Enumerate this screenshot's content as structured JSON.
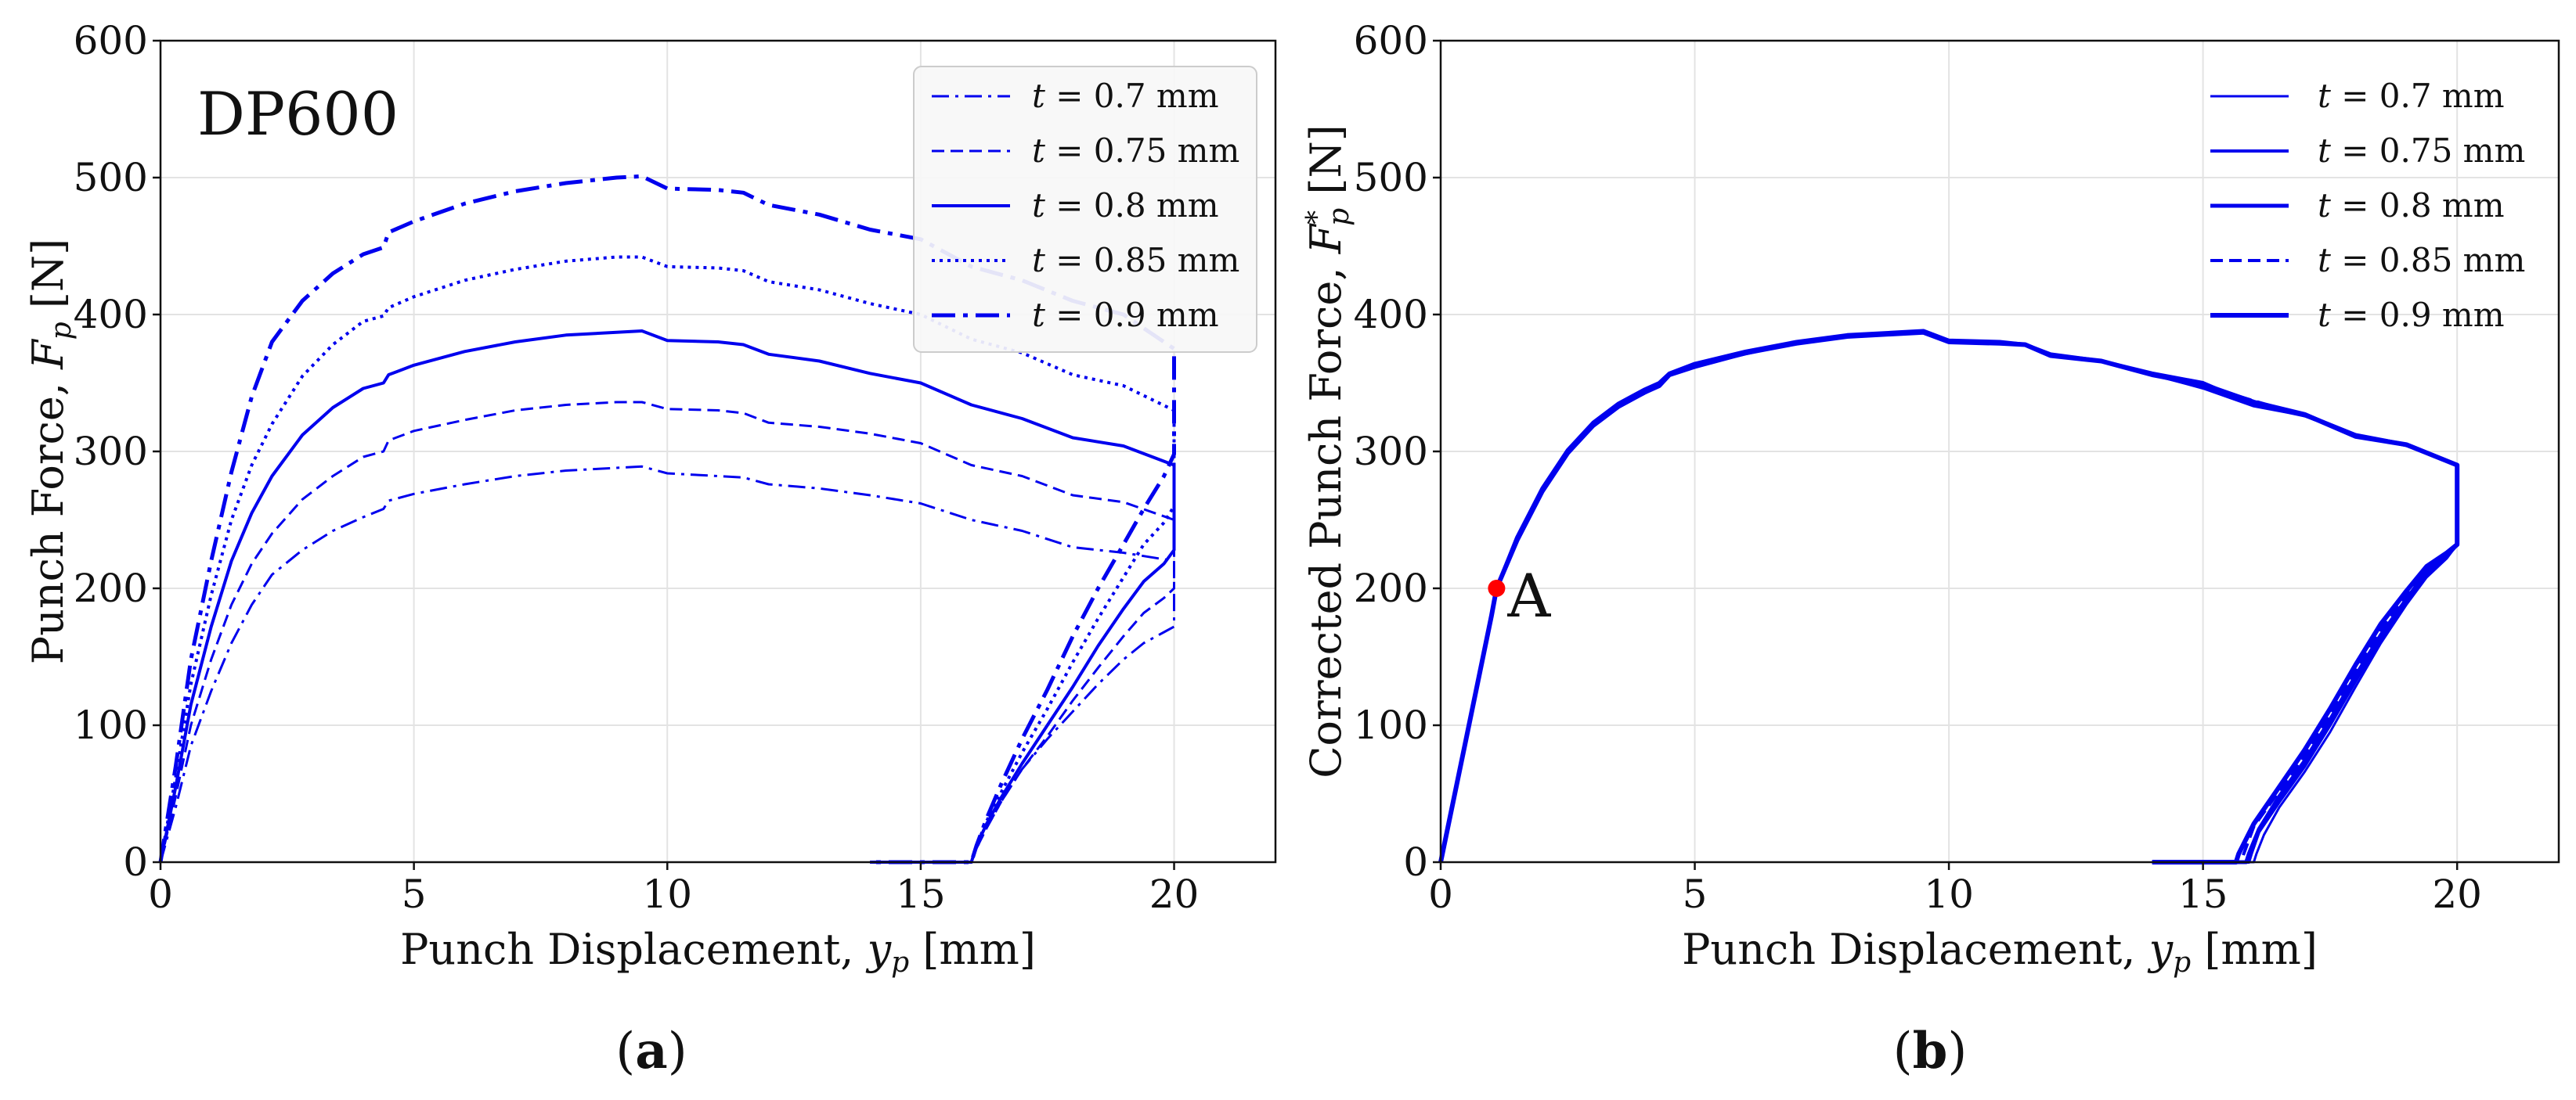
{
  "figure": {
    "panels": [
      {
        "tag_open": "(",
        "tag_letter": "a",
        "tag_close": ")"
      },
      {
        "tag_open": "(",
        "tag_letter": "b",
        "tag_close": ")"
      }
    ]
  },
  "chart_data": [
    {
      "type": "line",
      "title": "",
      "inset_label": "DP600",
      "xlabel": "Punch Displacement, y_p [mm]",
      "xlabel_parts": {
        "main": "Punch Displacement, ",
        "var": "y",
        "sub": "p",
        "unit": " [mm]"
      },
      "ylabel": "Punch Force, F_p [N]",
      "ylabel_parts": {
        "main": "Punch Force, ",
        "var": "F",
        "sub": "p",
        "unit": " [N]"
      },
      "xlim": [
        0,
        22
      ],
      "ylim": [
        0,
        600
      ],
      "xticks": [
        0,
        5,
        10,
        15,
        20
      ],
      "yticks": [
        0,
        100,
        200,
        300,
        400,
        500,
        600
      ],
      "xtick_labels": [
        "0",
        "5",
        "10",
        "15",
        "20"
      ],
      "ytick_labels": [
        "0",
        "100",
        "200",
        "300",
        "400",
        "500",
        "600"
      ],
      "grid": true,
      "legend_position": "top-right",
      "legend_framed": true,
      "color": "#0000ee",
      "series": [
        {
          "name": "t = 0.7 mm",
          "legend": {
            "var": "t",
            "rest": " = 0.7 mm"
          },
          "style": "dashdot",
          "width": 3,
          "x": [
            0,
            0.3,
            0.6,
            1.0,
            1.4,
            1.8,
            2.2,
            2.8,
            3.4,
            4.0,
            4.4,
            4.5,
            5.0,
            6.0,
            7.0,
            8.0,
            9.0,
            9.5,
            10.0,
            11.0,
            11.5,
            12.0,
            13.0,
            14.0,
            15.0,
            16.0,
            17.0,
            18.0,
            19.0,
            20.0,
            20.0,
            19.8,
            19.4,
            19.0,
            18.5,
            18.0,
            17.5,
            17.0,
            16.6,
            16.3,
            16.1,
            16.0,
            14.0
          ],
          "y": [
            0,
            40,
            85,
            125,
            160,
            188,
            210,
            228,
            242,
            252,
            258,
            264,
            269,
            276,
            282,
            286,
            288,
            289,
            284,
            282,
            281,
            276,
            273,
            268,
            262,
            250,
            242,
            230,
            226,
            220,
            172,
            168,
            160,
            148,
            130,
            110,
            90,
            68,
            45,
            25,
            10,
            0,
            0
          ]
        },
        {
          "name": "t = 0.75 mm",
          "legend": {
            "var": "t",
            "rest": " = 0.75 mm"
          },
          "style": "dashed",
          "width": 3,
          "x": [
            0,
            0.3,
            0.6,
            1.0,
            1.4,
            1.8,
            2.2,
            2.8,
            3.4,
            4.0,
            4.4,
            4.5,
            5.0,
            6.0,
            7.0,
            8.0,
            9.0,
            9.5,
            10.0,
            11.0,
            11.5,
            12.0,
            13.0,
            14.0,
            15.0,
            16.0,
            17.0,
            18.0,
            19.0,
            20.0,
            20.0,
            19.8,
            19.4,
            19.0,
            18.5,
            18.0,
            17.5,
            17.0,
            16.6,
            16.3,
            16.1,
            16.0,
            14.0
          ],
          "y": [
            0,
            48,
            100,
            148,
            188,
            218,
            240,
            265,
            282,
            296,
            300,
            308,
            315,
            323,
            330,
            334,
            336,
            336,
            331,
            330,
            328,
            321,
            318,
            313,
            306,
            290,
            282,
            268,
            263,
            250,
            200,
            193,
            182,
            165,
            142,
            118,
            92,
            68,
            45,
            25,
            10,
            0,
            0
          ]
        },
        {
          "name": "t = 0.8 mm",
          "legend": {
            "var": "t",
            "rest": " = 0.8 mm"
          },
          "style": "solid",
          "width": 4,
          "x": [
            0,
            0.3,
            0.6,
            1.0,
            1.4,
            1.8,
            2.2,
            2.8,
            3.4,
            4.0,
            4.4,
            4.5,
            5.0,
            6.0,
            7.0,
            8.0,
            9.0,
            9.5,
            10.0,
            11.0,
            11.5,
            12.0,
            13.0,
            14.0,
            15.0,
            16.0,
            17.0,
            18.0,
            19.0,
            20.0,
            20.0,
            19.8,
            19.4,
            19.0,
            18.5,
            18.0,
            17.5,
            17.0,
            16.6,
            16.3,
            16.1,
            16.0,
            14.0
          ],
          "y": [
            0,
            55,
            115,
            172,
            220,
            255,
            282,
            312,
            332,
            346,
            350,
            356,
            363,
            373,
            380,
            385,
            387,
            388,
            381,
            380,
            378,
            371,
            366,
            357,
            350,
            334,
            324,
            310,
            304,
            290,
            228,
            218,
            205,
            185,
            158,
            128,
            100,
            72,
            48,
            28,
            12,
            0,
            0
          ]
        },
        {
          "name": "t = 0.85 mm",
          "legend": {
            "var": "t",
            "rest": " = 0.85 mm"
          },
          "style": "dotted",
          "width": 4,
          "x": [
            0,
            0.3,
            0.6,
            1.0,
            1.4,
            1.8,
            2.2,
            2.8,
            3.4,
            4.0,
            4.4,
            4.5,
            5.0,
            6.0,
            7.0,
            8.0,
            9.0,
            9.5,
            10.0,
            11.0,
            11.5,
            12.0,
            13.0,
            14.0,
            15.0,
            16.0,
            17.0,
            18.0,
            19.0,
            20.0,
            20.0,
            19.8,
            19.4,
            19.0,
            18.5,
            18.0,
            17.5,
            17.0,
            16.6,
            16.3,
            16.1,
            16.0,
            14.0
          ],
          "y": [
            0,
            62,
            130,
            195,
            250,
            290,
            320,
            355,
            378,
            395,
            399,
            405,
            413,
            425,
            433,
            439,
            442,
            442,
            435,
            434,
            432,
            424,
            418,
            408,
            400,
            382,
            372,
            356,
            348,
            330,
            260,
            248,
            232,
            208,
            178,
            146,
            112,
            80,
            52,
            30,
            12,
            0,
            0
          ]
        },
        {
          "name": "t = 0.9 mm",
          "legend": {
            "var": "t",
            "rest": " = 0.9 mm"
          },
          "style": "dashdot-bold",
          "width": 5,
          "x": [
            0,
            0.3,
            0.6,
            1.0,
            1.4,
            1.8,
            2.2,
            2.8,
            3.4,
            4.0,
            4.4,
            4.5,
            5.0,
            6.0,
            7.0,
            8.0,
            9.0,
            9.5,
            10.0,
            11.0,
            11.5,
            12.0,
            13.0,
            14.0,
            15.0,
            16.0,
            17.0,
            18.0,
            19.0,
            20.0,
            20.0,
            19.8,
            19.4,
            19.0,
            18.5,
            18.0,
            17.5,
            17.0,
            16.6,
            16.3,
            16.1,
            16.0,
            14.0
          ],
          "y": [
            0,
            70,
            148,
            220,
            285,
            340,
            380,
            410,
            430,
            444,
            449,
            460,
            468,
            481,
            490,
            496,
            500,
            501,
            492,
            491,
            489,
            480,
            473,
            462,
            455,
            435,
            425,
            410,
            400,
            375,
            298,
            282,
            258,
            232,
            200,
            165,
            126,
            90,
            58,
            32,
            12,
            0,
            0
          ]
        }
      ]
    },
    {
      "type": "line",
      "title": "",
      "xlabel": "Punch Displacement, y_p [mm]",
      "xlabel_parts": {
        "main": "Punch Displacement, ",
        "var": "y",
        "sub": "p",
        "unit": " [mm]"
      },
      "ylabel": "Corrected Punch Force, F_p* [N]",
      "ylabel_parts": {
        "main": "Corrected Punch Force, ",
        "var": "F",
        "sub": "p",
        "sup": "*",
        "unit": " [N]"
      },
      "xlim": [
        0,
        22
      ],
      "ylim": [
        0,
        600
      ],
      "xticks": [
        0,
        5,
        10,
        15,
        20
      ],
      "yticks": [
        0,
        100,
        200,
        300,
        400,
        500,
        600
      ],
      "xtick_labels": [
        "0",
        "5",
        "10",
        "15",
        "20"
      ],
      "ytick_labels": [
        "0",
        "100",
        "200",
        "300",
        "400",
        "500",
        "600"
      ],
      "grid": true,
      "legend_position": "top-right",
      "legend_framed": false,
      "color": "#0000ee",
      "annotation": {
        "label": "A",
        "x": 1.1,
        "y": 200,
        "color": "#ff0000"
      },
      "series": [
        {
          "name": "t = 0.7 mm",
          "legend": {
            "var": "t",
            "rest": " = 0.7 mm"
          },
          "style": "solid",
          "width": 3,
          "x": [
            0,
            0.5,
            1.0,
            1.1,
            1.5,
            2.0,
            2.5,
            3.0,
            3.5,
            4.0,
            4.3,
            4.5,
            5.0,
            6.0,
            7.0,
            8.0,
            9.0,
            9.5,
            10.0,
            11.0,
            11.5,
            12.0,
            13.0,
            14.0,
            15.0,
            16.0,
            17.0,
            18.0,
            19.0,
            20.0,
            20.0,
            19.8,
            19.4,
            19.0,
            18.5,
            18.0,
            17.5,
            17.0,
            16.5,
            16.2,
            16.05,
            16.0,
            14.0
          ],
          "y": [
            0,
            90,
            180,
            200,
            235,
            270,
            298,
            318,
            332,
            342,
            348,
            356,
            362,
            371,
            379,
            384,
            386,
            387,
            380,
            379,
            378,
            370,
            366,
            356,
            346,
            333,
            326,
            312,
            304,
            290,
            232,
            222,
            208,
            188,
            160,
            128,
            95,
            66,
            40,
            20,
            6,
            0,
            0
          ]
        },
        {
          "name": "t = 0.75 mm",
          "legend": {
            "var": "t",
            "rest": " = 0.75 mm"
          },
          "style": "solid",
          "width": 4,
          "x": [
            0,
            0.5,
            1.0,
            1.1,
            1.5,
            2.0,
            2.5,
            3.0,
            3.5,
            4.0,
            4.3,
            4.5,
            5.0,
            6.0,
            7.0,
            8.0,
            9.0,
            9.5,
            10.0,
            11.0,
            11.5,
            12.0,
            13.0,
            14.0,
            15.0,
            16.0,
            17.0,
            18.0,
            19.0,
            20.0,
            20.0,
            19.8,
            19.4,
            19.0,
            18.5,
            18.0,
            17.5,
            17.0,
            16.5,
            16.1,
            15.95,
            15.9,
            14.0
          ],
          "y": [
            0,
            90,
            180,
            200,
            236,
            272,
            300,
            320,
            334,
            344,
            349,
            357,
            363,
            372,
            379,
            384,
            386,
            387,
            381,
            379,
            378,
            370,
            366,
            356,
            347,
            334,
            326,
            312,
            305,
            290,
            232,
            223,
            210,
            190,
            163,
            132,
            100,
            70,
            44,
            22,
            6,
            0,
            0
          ]
        },
        {
          "name": "t = 0.8 mm",
          "legend": {
            "var": "t",
            "rest": " = 0.8 mm"
          },
          "style": "solid",
          "width": 5,
          "x": [
            0,
            0.5,
            1.0,
            1.1,
            1.5,
            2.0,
            2.5,
            3.0,
            3.5,
            4.0,
            4.3,
            4.5,
            5.0,
            6.0,
            7.0,
            8.0,
            9.0,
            9.5,
            10.0,
            11.0,
            11.5,
            12.0,
            13.0,
            14.0,
            15.0,
            16.0,
            17.0,
            18.0,
            19.0,
            20.0,
            20.0,
            19.8,
            19.4,
            19.0,
            18.5,
            18.0,
            17.5,
            17.0,
            16.5,
            16.1,
            15.9,
            15.85,
            14.0
          ],
          "y": [
            0,
            90,
            180,
            200,
            237,
            273,
            301,
            321,
            335,
            345,
            350,
            357,
            364,
            373,
            380,
            385,
            387,
            388,
            381,
            380,
            378,
            371,
            366,
            357,
            350,
            334,
            327,
            312,
            305,
            290,
            232,
            224,
            212,
            192,
            166,
            136,
            104,
            74,
            48,
            24,
            6,
            0,
            0
          ]
        },
        {
          "name": "t = 0.85 mm",
          "legend": {
            "var": "t",
            "rest": " = 0.85 mm"
          },
          "style": "dashed",
          "width": 4,
          "x": [
            0,
            0.5,
            1.0,
            1.1,
            1.5,
            2.0,
            2.5,
            3.0,
            3.5,
            4.0,
            4.3,
            4.5,
            5.0,
            6.0,
            7.0,
            8.0,
            9.0,
            9.5,
            10.0,
            11.0,
            11.5,
            12.0,
            13.0,
            14.0,
            15.0,
            16.0,
            17.0,
            18.0,
            19.0,
            20.0,
            20.0,
            19.8,
            19.4,
            19.0,
            18.5,
            18.0,
            17.5,
            17.0,
            16.5,
            16.0,
            15.8,
            15.75,
            14.0
          ],
          "y": [
            0,
            90,
            180,
            200,
            236,
            272,
            300,
            320,
            334,
            344,
            349,
            356,
            363,
            372,
            379,
            384,
            386,
            387,
            381,
            379,
            378,
            370,
            366,
            356,
            348,
            337,
            326,
            312,
            305,
            290,
            232,
            225,
            214,
            195,
            170,
            140,
            108,
            78,
            52,
            26,
            6,
            0,
            0
          ]
        },
        {
          "name": "t = 0.9 mm",
          "legend": {
            "var": "t",
            "rest": " = 0.9 mm"
          },
          "style": "solid",
          "width": 6,
          "x": [
            0,
            0.5,
            1.0,
            1.1,
            1.5,
            2.0,
            2.5,
            3.0,
            3.5,
            4.0,
            4.3,
            4.5,
            5.0,
            6.0,
            7.0,
            8.0,
            9.0,
            9.5,
            10.0,
            11.0,
            11.5,
            12.0,
            13.0,
            14.0,
            15.0,
            16.0,
            17.0,
            18.0,
            19.0,
            20.0,
            20.0,
            19.8,
            19.4,
            19.0,
            18.5,
            18.0,
            17.5,
            17.0,
            16.5,
            16.0,
            15.7,
            15.65,
            14.0
          ],
          "y": [
            0,
            90,
            180,
            200,
            235,
            271,
            299,
            319,
            333,
            343,
            348,
            356,
            362,
            372,
            379,
            384,
            386,
            387,
            380,
            379,
            378,
            370,
            366,
            356,
            349,
            336,
            327,
            311,
            305,
            290,
            232,
            226,
            216,
            198,
            174,
            144,
            112,
            82,
            55,
            28,
            6,
            0,
            0
          ]
        }
      ]
    }
  ]
}
